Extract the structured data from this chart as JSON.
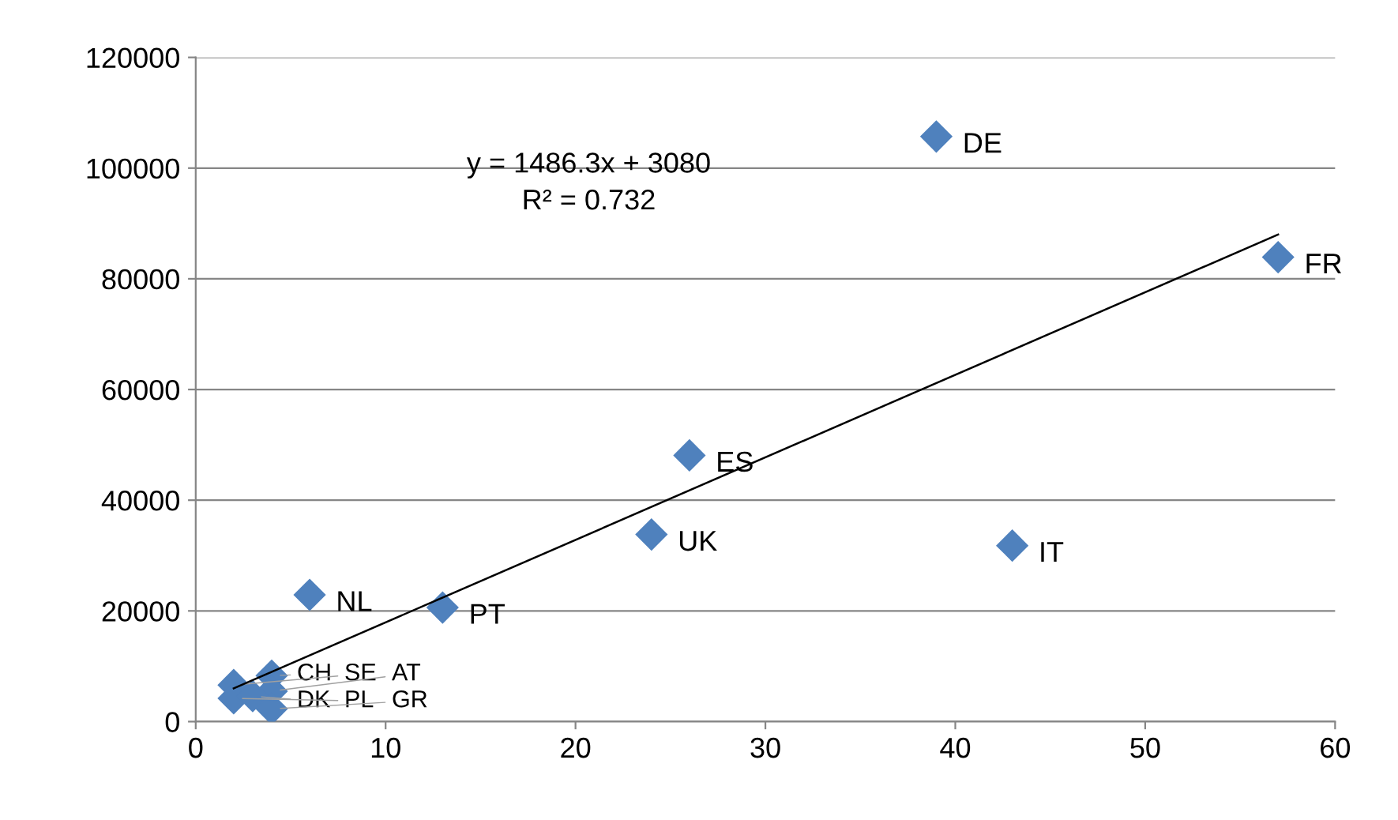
{
  "chart_data": {
    "type": "scatter",
    "xlim": [
      0,
      60
    ],
    "xticks": [
      0,
      10,
      20,
      30,
      40,
      50,
      60
    ],
    "ylim": [
      0,
      120000
    ],
    "yticks": [
      0,
      20000,
      40000,
      60000,
      80000,
      100000,
      120000
    ],
    "grid": "y",
    "legend": false,
    "marker": "diamond",
    "series": [
      {
        "color": "#4f81bd",
        "x": [
          39,
          57,
          26,
          24,
          43,
          6,
          13,
          4,
          2,
          4,
          2,
          3,
          4
        ],
        "values": [
          105700,
          83900,
          48100,
          33800,
          31800,
          22900,
          20600,
          8300,
          6600,
          5500,
          4200,
          4600,
          2300
        ]
      },
      {
        "type": "line",
        "marker": "none",
        "color": "#000000",
        "x": [
          2,
          57
        ],
        "values": [
          6000,
          88000
        ]
      }
    ],
    "annotations": [
      {
        "text": "DE",
        "x": 39,
        "y": 105700
      },
      {
        "text": "FR",
        "x": 57,
        "y": 83900
      },
      {
        "text": "ES",
        "x": 26,
        "y": 48100
      },
      {
        "text": "UK",
        "x": 24,
        "y": 33800
      },
      {
        "text": "IT",
        "x": 43,
        "y": 31800
      },
      {
        "text": "NL",
        "x": 6,
        "y": 22900
      },
      {
        "text": "PT",
        "x": 13,
        "y": 20600
      },
      {
        "text": "CH",
        "x": 4,
        "y": 8300
      },
      {
        "text": "SE",
        "x": 2,
        "y": 6600
      },
      {
        "text": "AT",
        "x": 4,
        "y": 5500
      },
      {
        "text": "PL",
        "x": 2,
        "y": 4200
      },
      {
        "text": "DK",
        "x": 3,
        "y": 4600
      },
      {
        "text": "GR",
        "x": 4,
        "y": 2300
      },
      "y = 1486.3x + 3080\nR² = 0.732"
    ]
  }
}
